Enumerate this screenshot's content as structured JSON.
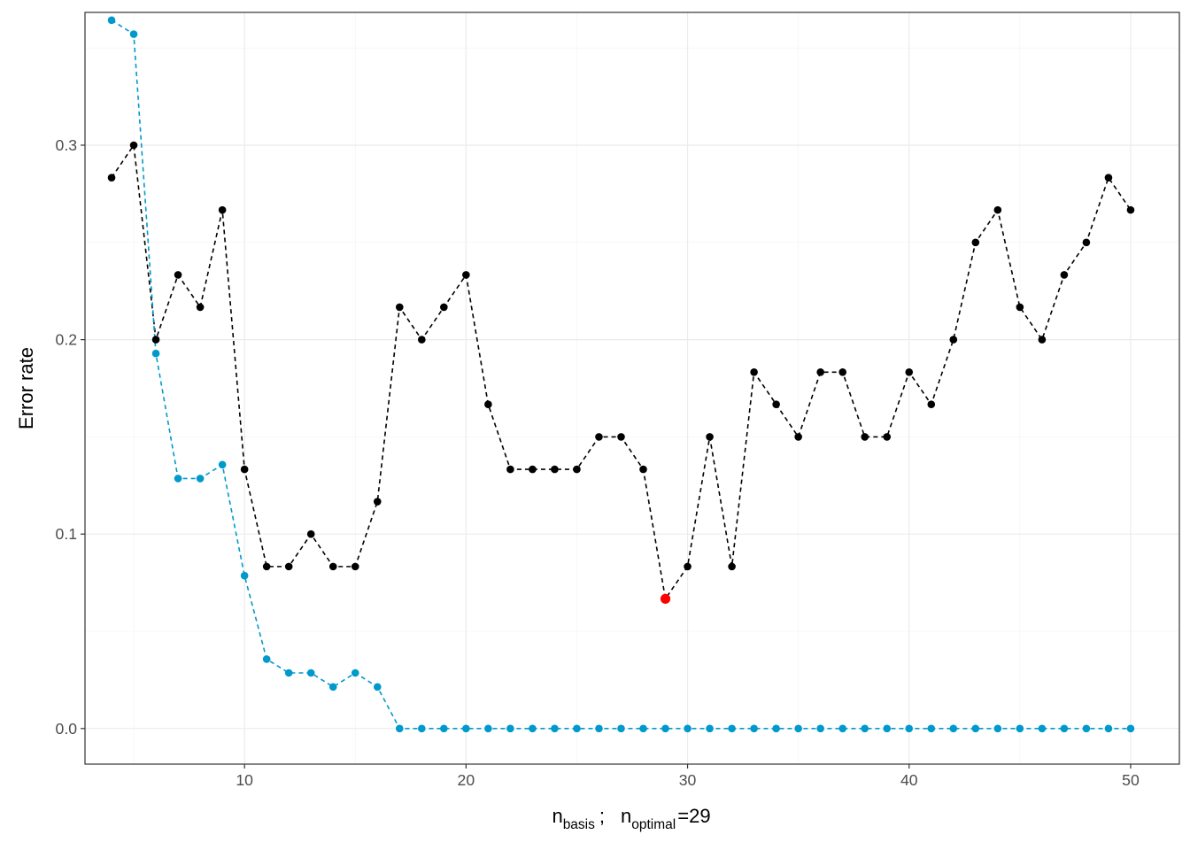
{
  "chart_data": {
    "type": "line",
    "title": "",
    "ylabel": "Error rate",
    "xlabel": {
      "n": "n",
      "basis_sub": "basis",
      "separator": ";",
      "n2": "n",
      "optimal_sub": "optimal",
      "equals": "=",
      "value": "29"
    },
    "xlim": [
      2.8,
      52.2
    ],
    "ylim": [
      -0.0183,
      0.3683
    ],
    "x_ticks": [
      10,
      20,
      30,
      40,
      50
    ],
    "x_tick_labels": [
      "10",
      "20",
      "30",
      "40",
      "50"
    ],
    "y_ticks": [
      0.0,
      0.1,
      0.2,
      0.3
    ],
    "y_tick_labels": [
      "0.0",
      "0.1",
      "0.2",
      "0.3"
    ],
    "grid": true,
    "legend": "none",
    "x": [
      4,
      5,
      6,
      7,
      8,
      9,
      10,
      11,
      12,
      13,
      14,
      15,
      16,
      17,
      18,
      19,
      20,
      21,
      22,
      23,
      24,
      25,
      26,
      27,
      28,
      29,
      30,
      31,
      32,
      33,
      34,
      35,
      36,
      37,
      38,
      39,
      40,
      41,
      42,
      43,
      44,
      45,
      46,
      47,
      48,
      49,
      50
    ],
    "series": [
      {
        "color": "#000000",
        "line_style": "dashed",
        "values": [
          0.2833,
          0.3,
          0.2,
          0.2333,
          0.2167,
          0.2667,
          0.1333,
          0.0833,
          0.0833,
          0.1,
          0.0833,
          0.0833,
          0.1167,
          0.2167,
          0.2,
          0.2167,
          0.2333,
          0.1667,
          0.1333,
          0.1333,
          0.1333,
          0.1333,
          0.15,
          0.15,
          0.1333,
          0.0667,
          0.0833,
          0.15,
          0.0833,
          0.1833,
          0.1667,
          0.15,
          0.1833,
          0.1833,
          0.15,
          0.15,
          0.1833,
          0.1667,
          0.2,
          0.25,
          0.2667,
          0.2167,
          0.2,
          0.2333,
          0.25,
          0.2833,
          0.2667
        ]
      },
      {
        "color": "#0099CC",
        "line_style": "dashed",
        "values": [
          0.3643,
          0.3571,
          0.1929,
          0.1286,
          0.1286,
          0.1357,
          0.0786,
          0.0357,
          0.0286,
          0.0286,
          0.0214,
          0.0286,
          0.0214,
          0,
          0,
          0,
          0,
          0,
          0,
          0,
          0,
          0,
          0,
          0,
          0,
          0,
          0,
          0,
          0,
          0,
          0,
          0,
          0,
          0,
          0,
          0,
          0,
          0,
          0,
          0,
          0,
          0,
          0,
          0,
          0,
          0,
          0
        ]
      }
    ],
    "highlight": {
      "x": 29,
      "y": 0.0667,
      "color": "#FF0000"
    }
  }
}
